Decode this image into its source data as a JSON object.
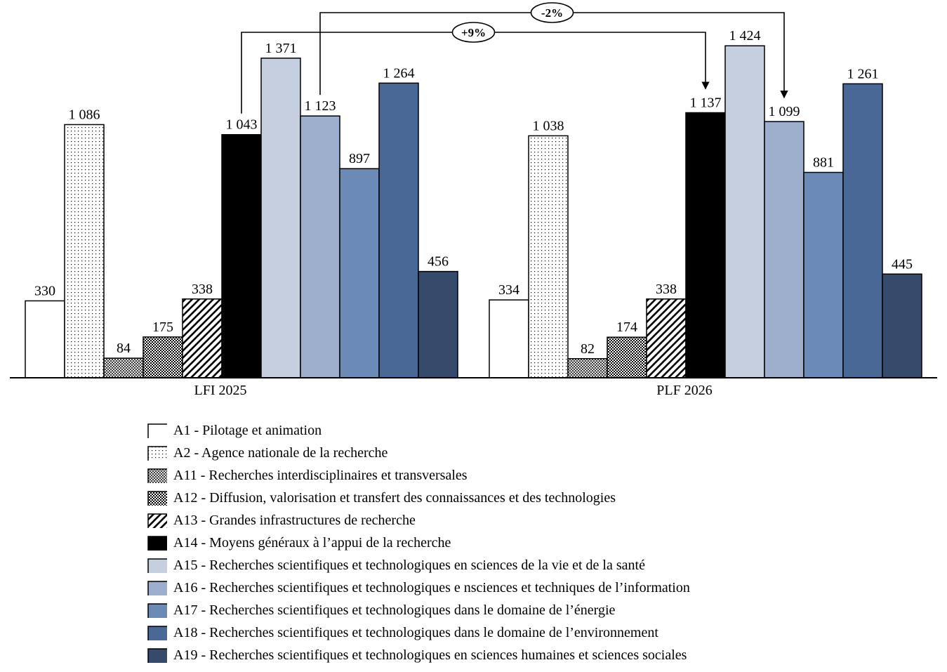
{
  "chart_data": {
    "type": "bar",
    "categories": [
      "LFI 2025",
      "PLF 2026"
    ],
    "series": [
      {
        "name": "A1 - Pilotage et animation",
        "values": [
          330,
          334
        ],
        "labels": [
          "330",
          "334"
        ],
        "color": "#ffffff",
        "pattern": "none"
      },
      {
        "name": "A2 - Agence nationale de la recherche",
        "values": [
          1086,
          1038
        ],
        "labels": [
          "1 086",
          "1 038"
        ],
        "color": "#ffffff",
        "pattern": "dots"
      },
      {
        "name": "A11 - Recherches interdisciplinaires et transversales",
        "values": [
          84,
          82
        ],
        "labels": [
          "84",
          "82"
        ],
        "color": "#ffffff",
        "pattern": "crosshatch"
      },
      {
        "name": "A12 - Diffusion, valorisation et transfert des connaissances et des technologies",
        "values": [
          175,
          174
        ],
        "labels": [
          "175",
          "174"
        ],
        "color": "#000000",
        "pattern": "checker"
      },
      {
        "name": "A13 - Grandes infrastructures de recherche",
        "values": [
          338,
          338
        ],
        "labels": [
          "338",
          "338"
        ],
        "color": "#ffffff",
        "pattern": "diagonal"
      },
      {
        "name": "A14 - Moyens généraux à l’appui de la recherche",
        "values": [
          1043,
          1137
        ],
        "labels": [
          "1 043",
          "1 137"
        ],
        "color": "#000000",
        "pattern": "none"
      },
      {
        "name": "A15 - Recherches scientifiques et technologiques en sciences de la vie et de la santé",
        "values": [
          1371,
          1424
        ],
        "labels": [
          "1 371",
          "1 424"
        ],
        "color": "#c5cfe0",
        "pattern": "none"
      },
      {
        "name": "A16 - Recherches scientifiques et technologiques e nsciences et techniques de l’information",
        "values": [
          1123,
          1099
        ],
        "labels": [
          "1 123",
          "1 099"
        ],
        "color": "#9dafcc",
        "pattern": "none"
      },
      {
        "name": "A17 - Recherches scientifiques et technologiques dans le domaine de l’énergie",
        "values": [
          897,
          881
        ],
        "labels": [
          "897",
          "881"
        ],
        "color": "#6b8bb6",
        "pattern": "none"
      },
      {
        "name": "A18 - Recherches scientifiques et technologiques dans le domaine de l’environnement",
        "values": [
          1264,
          1261
        ],
        "labels": [
          "1 264",
          "1 261"
        ],
        "color": "#4a6895",
        "pattern": "none"
      },
      {
        "name": "A19 - Recherches scientifiques et technologiques en sciences humaines et sciences sociales",
        "values": [
          456,
          445
        ],
        "labels": [
          "456",
          "445"
        ],
        "color": "#364b6b",
        "pattern": "none"
      }
    ],
    "annotations": [
      {
        "text": "-2%",
        "from_series": 7,
        "to_series": 7
      },
      {
        "text": "+9%",
        "from_series": 5,
        "to_series": 5
      }
    ],
    "ylim": [
      0,
      1500
    ],
    "legend_position": "bottom",
    "grid": false,
    "title": "",
    "xlabel": "",
    "ylabel": ""
  }
}
